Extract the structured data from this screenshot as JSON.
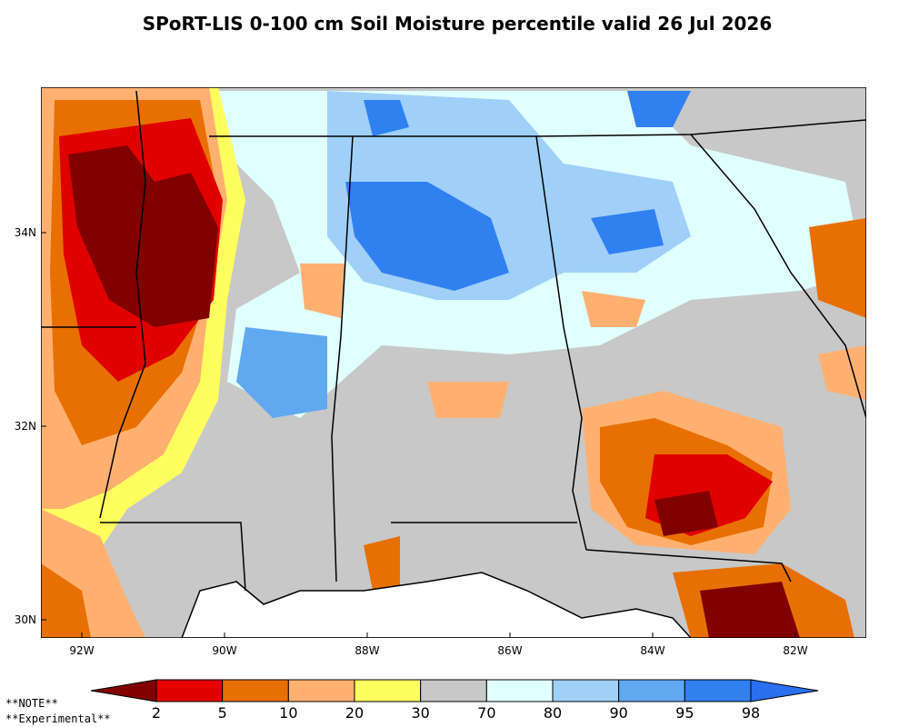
{
  "title": "SPoRT-LIS 0-100 cm Soil Moisture percentile valid 26 Jul 2026",
  "x_axis_labels": [
    "92W",
    "90W",
    "88W",
    "86W",
    "84W",
    "82W"
  ],
  "y_axis_labels": [
    "34N",
    "32N",
    "30N"
  ],
  "colorbar": {
    "labels": [
      2,
      5,
      10,
      20,
      30,
      70,
      80,
      90,
      95,
      98
    ],
    "colors": [
      "#800000",
      "#e00000",
      "#e87000",
      "#ffb070",
      "#ffff60",
      "#c8c8c8",
      "#e0ffff",
      "#a0d0f8",
      "#60a8f0",
      "#3080f0",
      "#2a6ff0"
    ]
  },
  "notes": [
    "**NOTE**",
    "**Experimental**"
  ]
}
